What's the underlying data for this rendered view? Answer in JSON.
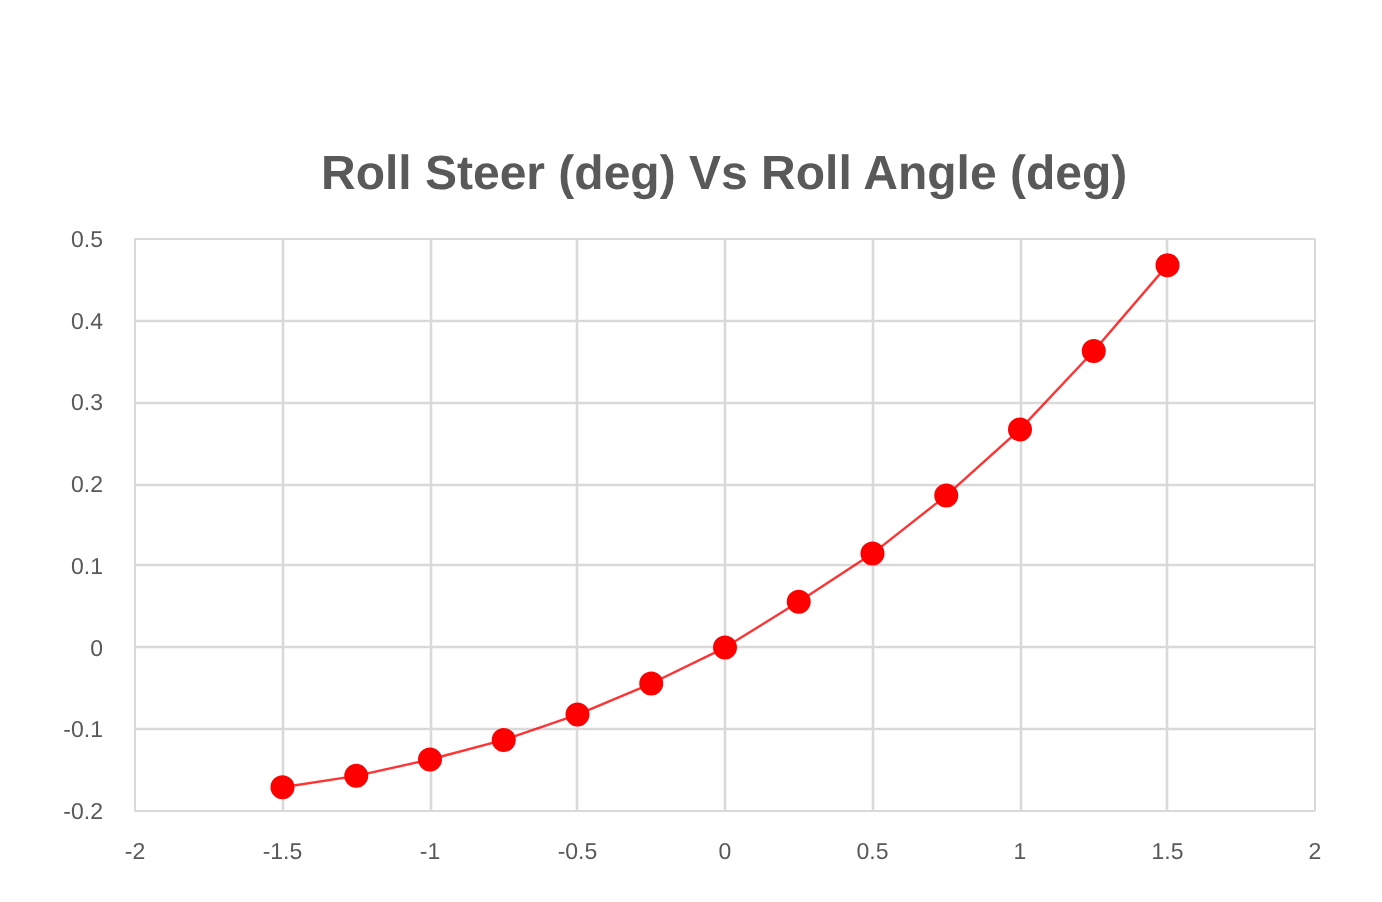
{
  "chart_data": {
    "type": "line",
    "title": "Roll Steer (deg) Vs Roll Angle (deg)",
    "x": [
      -1.5,
      -1.25,
      -1,
      -0.75,
      -0.5,
      -0.25,
      0,
      0.25,
      0.5,
      0.75,
      1,
      1.25,
      1.5
    ],
    "values": [
      -0.171,
      -0.157,
      -0.137,
      -0.113,
      -0.082,
      -0.044,
      0,
      0.056,
      0.115,
      0.186,
      0.267,
      0.363,
      0.468
    ],
    "color": "#ff0000",
    "marker": "circle",
    "line_style": "solid",
    "xlim": [
      -2,
      2
    ],
    "ylim": [
      -0.2,
      0.5
    ],
    "xticks": [
      -2,
      -1.5,
      -1,
      -0.5,
      0,
      0.5,
      1,
      1.5,
      2
    ],
    "yticks": [
      -0.2,
      -0.1,
      0,
      0.1,
      0.2,
      0.3,
      0.4,
      0.5
    ],
    "grid": true
  }
}
